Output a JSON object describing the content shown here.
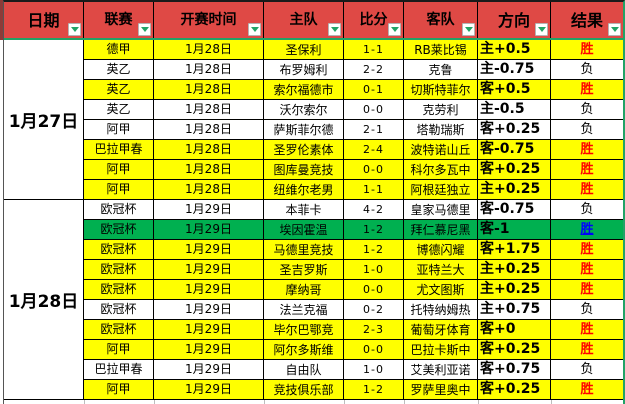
{
  "table": {
    "columns": [
      {
        "key": "date",
        "label": "日期",
        "big": true
      },
      {
        "key": "league",
        "label": "联赛",
        "big": false
      },
      {
        "key": "time",
        "label": "开赛时间",
        "big": false
      },
      {
        "key": "home",
        "label": "主队",
        "big": false
      },
      {
        "key": "score",
        "label": "比分",
        "big": false
      },
      {
        "key": "away",
        "label": "客队",
        "big": false
      },
      {
        "key": "dir",
        "label": "方向",
        "big": true
      },
      {
        "key": "result",
        "label": "结果",
        "big": true
      }
    ],
    "groups": [
      {
        "date": "1月27日",
        "rows": [
          {
            "league": "德甲",
            "time": "1月28日",
            "home": "圣保利",
            "score": "1-1",
            "away": "RB莱比锡",
            "direction": "主+0.5",
            "result": "胜",
            "bg": "yellow",
            "result_style": "red"
          },
          {
            "league": "英乙",
            "time": "1月28日",
            "home": "布罗姆利",
            "score": "2-2",
            "away": "克鲁",
            "direction": "主-0.75",
            "result": "负",
            "bg": "white",
            "result_style": "black"
          },
          {
            "league": "英乙",
            "time": "1月28日",
            "home": "索尔福德市",
            "score": "0-1",
            "away": "切斯特菲尔德",
            "direction": "客+0.5",
            "result": "胜",
            "bg": "yellow",
            "result_style": "red"
          },
          {
            "league": "英乙",
            "time": "1月28日",
            "home": "沃尔索尔",
            "score": "0-0",
            "away": "克劳利",
            "direction": "主-0.5",
            "result": "负",
            "bg": "white",
            "result_style": "black"
          },
          {
            "league": "阿甲",
            "time": "1月28日",
            "home": "萨斯菲尔德",
            "score": "2-1",
            "away": "塔勒瑞斯",
            "direction": "客+0.25",
            "result": "负",
            "bg": "white",
            "result_style": "black"
          },
          {
            "league": "巴拉甲春",
            "time": "1月28日",
            "home": "圣罗伦素体育",
            "score": "2-4",
            "away": "波特诺山丘",
            "direction": "客-0.75",
            "result": "胜",
            "bg": "yellow",
            "result_style": "red"
          },
          {
            "league": "阿甲",
            "time": "1月28日",
            "home": "图库曼竞技",
            "score": "0-0",
            "away": "科尔多瓦中央",
            "direction": "客+0.25",
            "result": "胜",
            "bg": "yellow",
            "result_style": "red"
          },
          {
            "league": "阿甲",
            "time": "1月28日",
            "home": "纽维尔老男孩",
            "score": "1-1",
            "away": "阿根廷独立",
            "direction": "主+0.25",
            "result": "胜",
            "bg": "yellow",
            "result_style": "red"
          }
        ]
      },
      {
        "date": "1月28日",
        "rows": [
          {
            "league": "欧冠杯",
            "time": "1月29日",
            "home": "本菲卡",
            "score": "4-2",
            "away": "皇家马德里",
            "direction": "客-0.75",
            "result": "负",
            "bg": "white",
            "result_style": "black"
          },
          {
            "league": "欧冠杯",
            "time": "1月29日",
            "home": "埃因霍温",
            "score": "1-2",
            "away": "拜仁慕尼黑",
            "direction": "客-1",
            "result": "胜",
            "bg": "green",
            "result_style": "blue"
          },
          {
            "league": "欧冠杯",
            "time": "1月29日",
            "home": "马德里竞技",
            "score": "1-2",
            "away": "博德闪耀",
            "direction": "客+1.75",
            "result": "胜",
            "bg": "yellow",
            "result_style": "red"
          },
          {
            "league": "欧冠杯",
            "time": "1月29日",
            "home": "圣吉罗斯",
            "score": "1-0",
            "away": "亚特兰大",
            "direction": "主+0.25",
            "result": "胜",
            "bg": "yellow",
            "result_style": "red"
          },
          {
            "league": "欧冠杯",
            "time": "1月29日",
            "home": "摩纳哥",
            "score": "0-0",
            "away": "尤文图斯",
            "direction": "主+0.25",
            "result": "胜",
            "bg": "yellow",
            "result_style": "red"
          },
          {
            "league": "欧冠杯",
            "time": "1月29日",
            "home": "法兰克福",
            "score": "0-2",
            "away": "托特纳姆热刺",
            "direction": "主+0.75",
            "result": "负",
            "bg": "white",
            "result_style": "black"
          },
          {
            "league": "欧冠杯",
            "time": "1月29日",
            "home": "毕尔巴鄂竞技",
            "score": "2-3",
            "away": "葡萄牙体育",
            "direction": "客+0",
            "result": "胜",
            "bg": "yellow",
            "result_style": "red"
          },
          {
            "league": "阿甲",
            "time": "1月29日",
            "home": "阿尔多斯维",
            "score": "0-0",
            "away": "巴拉卡斯中央",
            "direction": "客+0.25",
            "result": "胜",
            "bg": "yellow",
            "result_style": "red"
          },
          {
            "league": "巴拉甲春",
            "time": "1月29日",
            "home": "自由队",
            "score": "1-0",
            "away": "艾美利亚诺体育",
            "direction": "客+0.75",
            "result": "负",
            "bg": "white",
            "result_style": "black"
          },
          {
            "league": "阿甲",
            "time": "1月29日",
            "home": "竞技俱乐部",
            "score": "1-2",
            "away": "罗萨里奥中央",
            "direction": "客+0.25",
            "result": "胜",
            "bg": "yellow",
            "result_style": "red"
          }
        ]
      }
    ]
  },
  "icons": {
    "filter_arrow": "filter-dropdown-arrow"
  },
  "colors": {
    "header_bg": "#df4945",
    "row_yellow": "#ffff00",
    "row_highlight_green": "#00b050",
    "result_win_red": "#ff0000",
    "result_win_blue": "#0000ff",
    "filter_accent_teal": "#21a366",
    "grid_line": "#000000"
  }
}
